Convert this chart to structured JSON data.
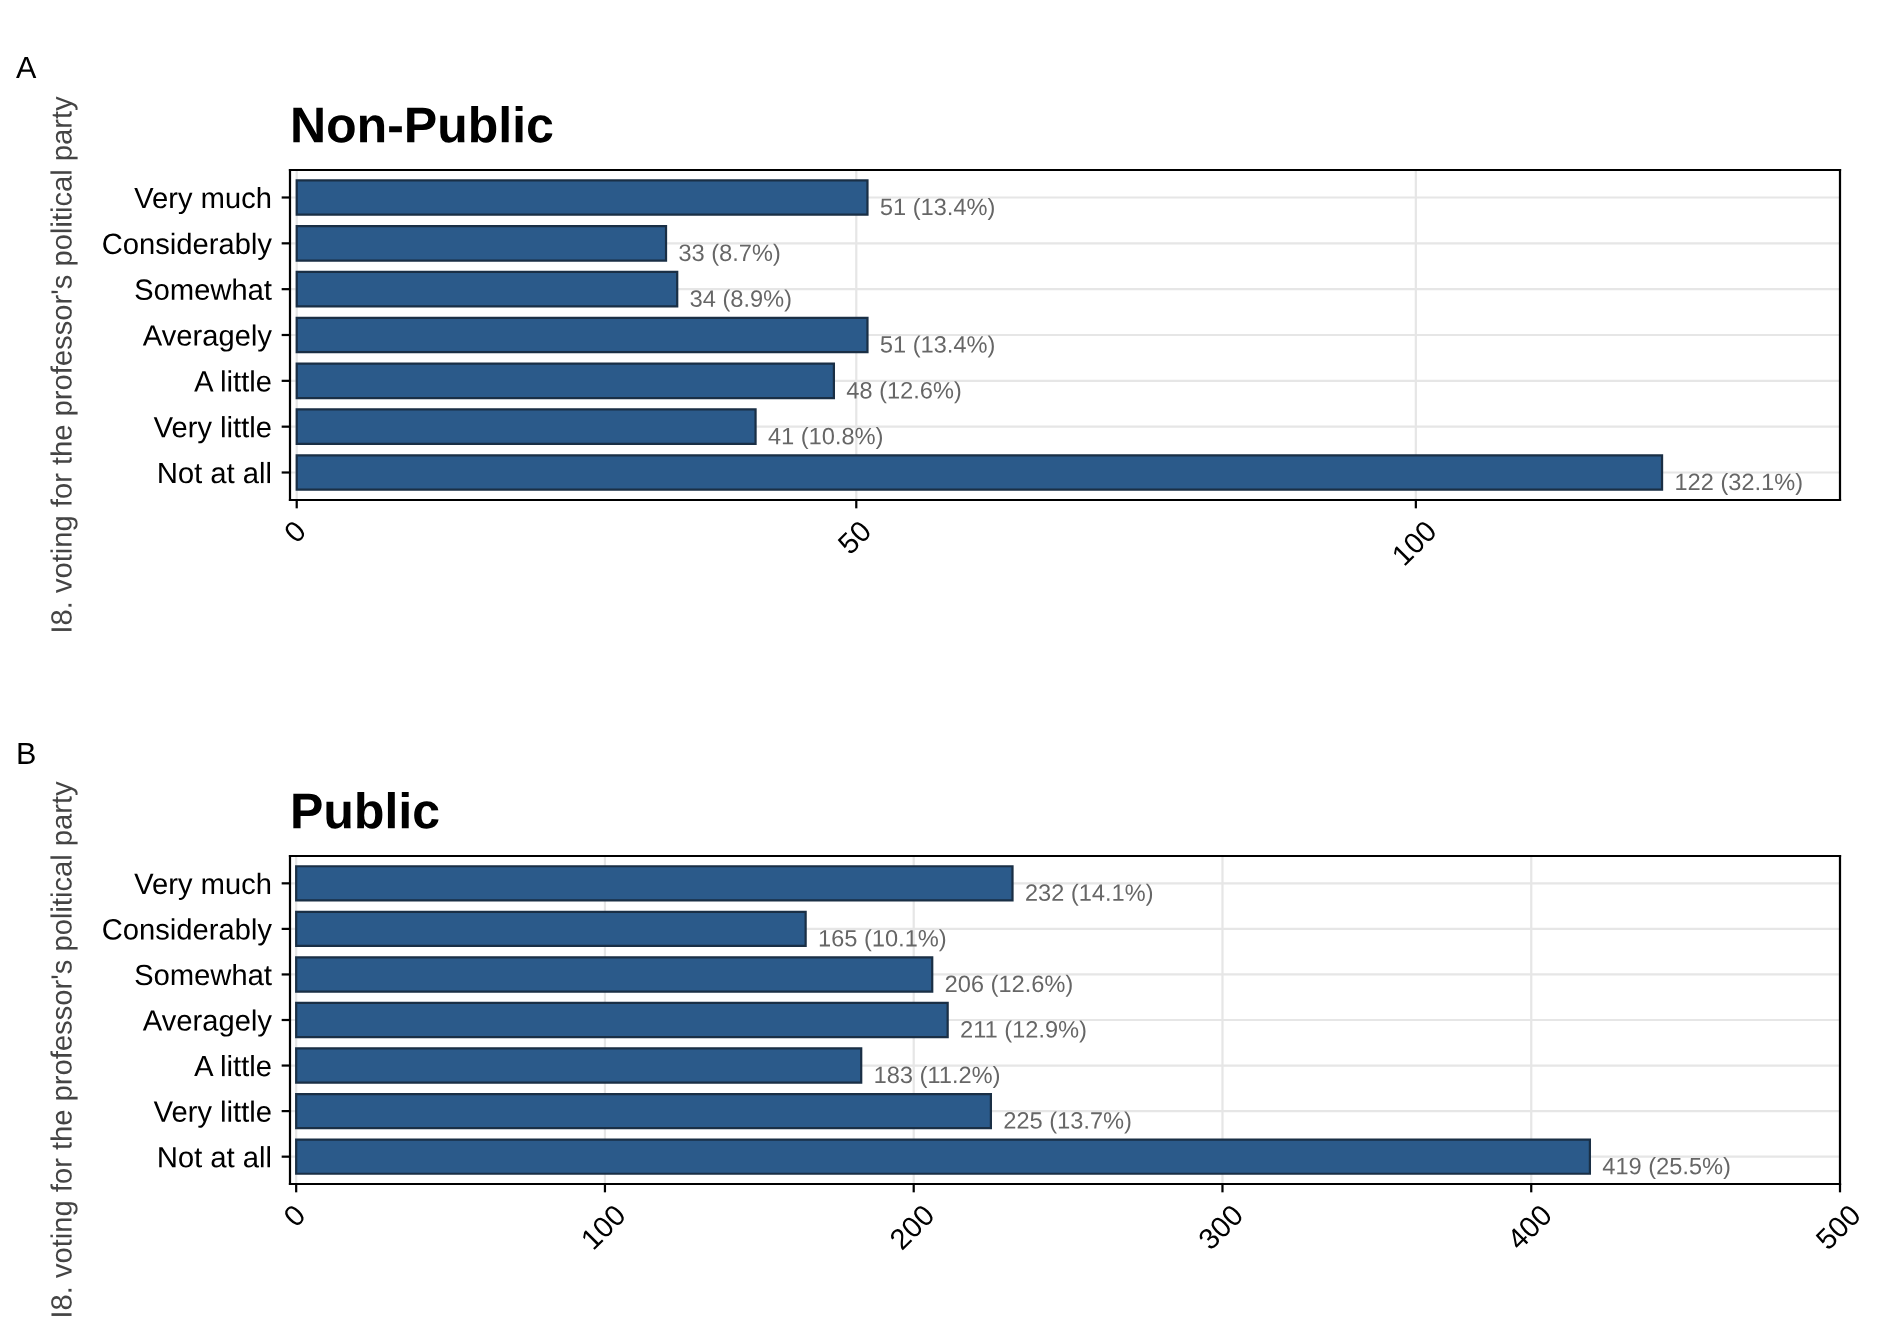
{
  "chart_data": [
    {
      "type": "bar",
      "orientation": "horizontal",
      "title": "Non-Public",
      "ylabel": "I8. voting for the professor's political party",
      "annotations": [
        "A"
      ],
      "categories": [
        "Very much",
        "Considerably",
        "Somewhat",
        "Averagely",
        "A little",
        "Very little",
        "Not at all"
      ],
      "values": [
        51,
        33,
        34,
        51,
        48,
        41,
        122
      ],
      "color": "#2b5a8a",
      "value_labels": [
        "51 (13.4%)",
        "33 (8.7%)",
        "34 (8.9%)",
        "51 (13.4%)",
        "48 (12.6%)",
        "41 (10.8%)",
        "122 (32.1%)"
      ],
      "xlim": [
        -0.6,
        137.9
      ],
      "xticks": [
        0,
        50,
        100
      ],
      "grid": true
    },
    {
      "type": "bar",
      "orientation": "horizontal",
      "title": "Public",
      "ylabel": "I8. voting for the professor's political party",
      "annotations": [
        "B"
      ],
      "categories": [
        "Very much",
        "Considerably",
        "Somewhat",
        "Averagely",
        "A little",
        "Very little",
        "Not at all"
      ],
      "values": [
        232,
        165,
        206,
        211,
        183,
        225,
        419
      ],
      "color": "#2b5a8a",
      "value_labels": [
        "232 (14.1%)",
        "165 (10.1%)",
        "206 (12.6%)",
        "211 (12.9%)",
        "183 (11.2%)",
        "225 (13.7%)",
        "419 (25.5%)"
      ],
      "xlim": [
        -2,
        500
      ],
      "xticks": [
        0,
        100,
        200,
        300,
        400,
        500
      ],
      "grid": true
    }
  ]
}
